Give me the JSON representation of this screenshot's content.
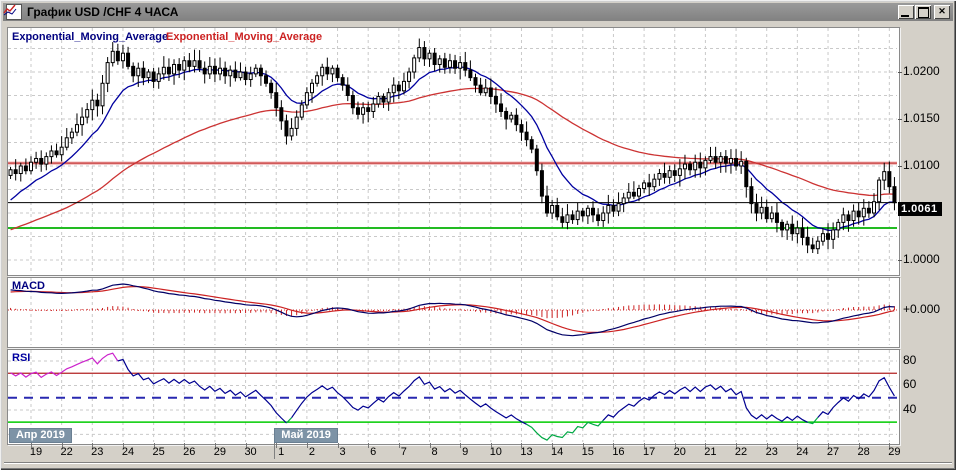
{
  "window": {
    "title": "График USD /CHF  4 ЧАСА",
    "controls": [
      "minimize",
      "maximize",
      "close"
    ]
  },
  "main": {
    "indicator_labels": [
      {
        "text": "Exponential_Moving_Average",
        "color": "#000080"
      },
      {
        "text": "Exponential_Moving_Average",
        "color": "#cc2222"
      }
    ],
    "y_axis_labels": [
      {
        "text": "1.0200",
        "value": 1.02
      },
      {
        "text": "1.0150",
        "value": 1.015
      },
      {
        "text": "1.0100",
        "value": 1.01
      },
      {
        "text": "1.0050",
        "value": 1.005
      },
      {
        "text": "1.0000",
        "value": 1.0
      }
    ],
    "current_price_label": "1.0061"
  },
  "x_axis": {
    "months": [
      {
        "label": "Апр 2019",
        "day_index": 0
      },
      {
        "label": "Май 2019",
        "day_index": 8
      }
    ],
    "days": [
      "19",
      "22",
      "23",
      "24",
      "25",
      "26",
      "29",
      "30",
      "1",
      "2",
      "3",
      "6",
      "7",
      "8",
      "9",
      "10",
      "13",
      "14",
      "15",
      "16",
      "17",
      "20",
      "21",
      "22",
      "23",
      "24",
      "27",
      "28",
      "29"
    ]
  },
  "chart_data": [
    {
      "type": "candlestick",
      "name": "USD/CHF 4H candles",
      "timeframe": "4 часа",
      "candles_per_day": 6,
      "first_open": 1.009,
      "closes": [
        1.0096,
        1.0092,
        1.01,
        1.0095,
        1.0104,
        1.0108,
        1.0102,
        1.011,
        1.0116,
        1.0112,
        1.012,
        1.013,
        1.0136,
        1.0144,
        1.0152,
        1.016,
        1.017,
        1.0164,
        1.0188,
        1.021,
        1.0222,
        1.0212,
        1.022,
        1.0206,
        1.0196,
        1.0204,
        1.0194,
        1.02,
        1.019,
        1.0198,
        1.0205,
        1.0198,
        1.0208,
        1.0202,
        1.0212,
        1.0206,
        1.0212,
        1.0204,
        1.0198,
        1.0206,
        1.0198,
        1.0204,
        1.0196,
        1.0202,
        1.0194,
        1.02,
        1.0192,
        1.0198,
        1.0204,
        1.0196,
        1.0188,
        1.0178,
        1.0162,
        1.0148,
        1.0132,
        1.014,
        1.0152,
        1.0165,
        1.0178,
        1.0188,
        1.0196,
        1.0205,
        1.0198,
        1.0204,
        1.0194,
        1.0186,
        1.0175,
        1.0162,
        1.0155,
        1.0162,
        1.0158,
        1.0166,
        1.0174,
        1.0168,
        1.0178,
        1.0186,
        1.018,
        1.019,
        1.02,
        1.0215,
        1.0226,
        1.0214,
        1.022,
        1.0208,
        1.0214,
        1.0205,
        1.0212,
        1.0204,
        1.021,
        1.0202,
        1.0194,
        1.0186,
        1.0178,
        1.0183,
        1.0174,
        1.0166,
        1.0158,
        1.015,
        1.0154,
        1.0144,
        1.0136,
        1.0128,
        1.0118,
        1.0095,
        1.0068,
        1.005,
        1.0058,
        1.0046,
        1.004,
        1.0048,
        1.0043,
        1.0052,
        1.0047,
        1.0055,
        1.0048,
        1.0042,
        1.005,
        1.0058,
        1.0052,
        1.006,
        1.0066,
        1.0072,
        1.0068,
        1.0076,
        1.0082,
        1.0078,
        1.0086,
        1.0092,
        1.0088,
        1.0095,
        1.009,
        1.0097,
        1.0102,
        1.0096,
        1.0104,
        1.0098,
        1.0106,
        1.011,
        1.0104,
        1.011,
        1.0103,
        1.0108,
        1.01,
        1.0105,
        1.0078,
        1.006,
        1.005,
        1.0056,
        1.0044,
        1.005,
        1.004,
        1.0032,
        1.0038,
        1.0028,
        1.0034,
        1.0024,
        1.0016,
        1.0012,
        1.002,
        1.0028,
        1.0022,
        1.0032,
        1.004,
        1.0048,
        1.0042,
        1.0052,
        1.0046,
        1.0055,
        1.005,
        1.0062,
        1.0085,
        1.0094,
        1.0078,
        1.0061
      ],
      "ylim": [
        0.9986,
        1.0247
      ],
      "yticks": [
        1.02,
        1.015,
        1.01,
        1.005,
        1.0
      ],
      "grid_step": 0.0025,
      "ema_fast": {
        "period": 12,
        "seed": 1.0058,
        "color": "#0000a0"
      },
      "ema_slow": {
        "period": 60,
        "seed": 1.003,
        "color": "#cc3333"
      },
      "levels": [
        {
          "value": 1.0103,
          "color": "#c03030",
          "style": "thick-red"
        },
        {
          "value": 1.0061,
          "color": "#000000",
          "style": "thin-black"
        },
        {
          "value": 1.0034,
          "color": "#22bb22",
          "style": "green"
        }
      ],
      "current_price": 1.0061
    },
    {
      "type": "line",
      "name": "MACD",
      "derived_from": "closes",
      "fast": 12,
      "slow": 26,
      "signal": 9,
      "seeds": {
        "ema_fast": 1.007,
        "ema_slow": 1.004,
        "signal": 0.0026
      },
      "zero_label": "+0.000",
      "colors": {
        "macd": "#000066",
        "signal": "#cc2222",
        "histogram": "#cc2222",
        "zero_line": "#cc3333"
      }
    },
    {
      "type": "line",
      "name": "RSI",
      "derived_from": "closes",
      "period": 14,
      "seeds": {
        "avg_gain": 0.00055,
        "avg_loss": 0.00025
      },
      "yticks": [
        {
          "text": "80",
          "value": 80
        },
        {
          "text": "60",
          "value": 60
        },
        {
          "text": "40",
          "value": 40
        }
      ],
      "levels": [
        {
          "value": 70,
          "color": "#b22222",
          "style": "solid"
        },
        {
          "value": 50,
          "color": "#2929b0",
          "style": "dashed"
        },
        {
          "value": 30,
          "color": "#00cc00",
          "style": "solid"
        }
      ],
      "colors": {
        "line": "#000090",
        "early_segment": "#cc22cc",
        "oversold_segment": "#00a844"
      },
      "early_segment_bars": 21
    }
  ]
}
